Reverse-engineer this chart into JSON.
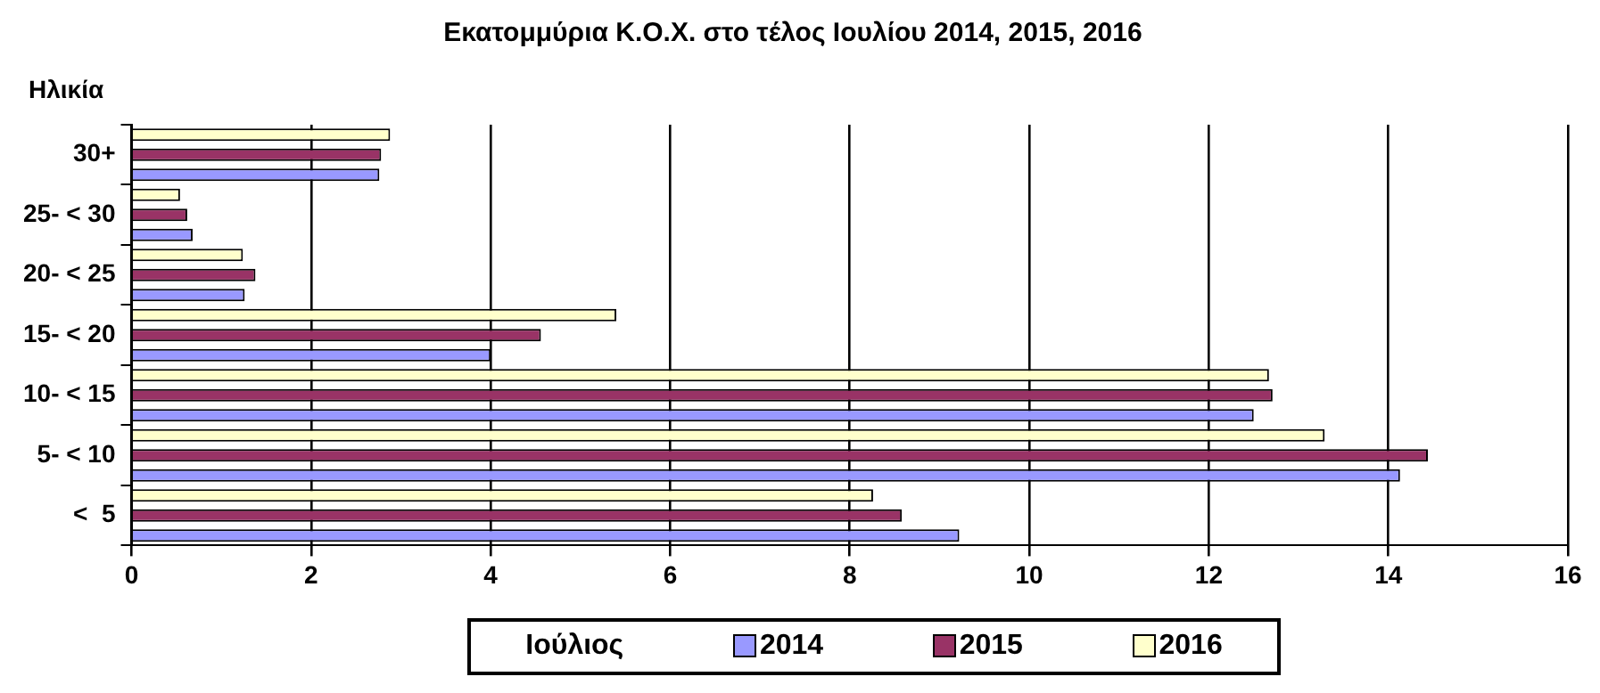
{
  "chart_data": {
    "type": "bar",
    "orientation": "horizontal",
    "title": "Εκατομμύρια Κ.Ο.Χ. στο τέλος Ιουλίου 2014, 2015, 2016",
    "ylabel": "Ηλικία",
    "legend_title": "Ιούλιος",
    "categories": [
      "30+",
      "25- < 30",
      "20- < 25",
      "15- < 20",
      "10- < 15",
      "5- < 10",
      "<  5"
    ],
    "series": [
      {
        "name": "2014",
        "color": "#9999ff",
        "values": [
          2.76,
          0.68,
          1.26,
          4.0,
          12.5,
          14.13,
          9.22
        ]
      },
      {
        "name": "2015",
        "color": "#993366",
        "values": [
          2.78,
          0.62,
          1.38,
          4.56,
          12.71,
          14.44,
          8.58
        ]
      },
      {
        "name": "2016",
        "color": "#ffffcc",
        "values": [
          2.88,
          0.54,
          1.24,
          5.4,
          12.67,
          13.29,
          8.26
        ]
      }
    ],
    "xlim": [
      0,
      16
    ],
    "xticks": [
      0,
      2,
      4,
      6,
      8,
      10,
      12,
      14,
      16
    ],
    "grid": "x",
    "legend": "bottom"
  }
}
